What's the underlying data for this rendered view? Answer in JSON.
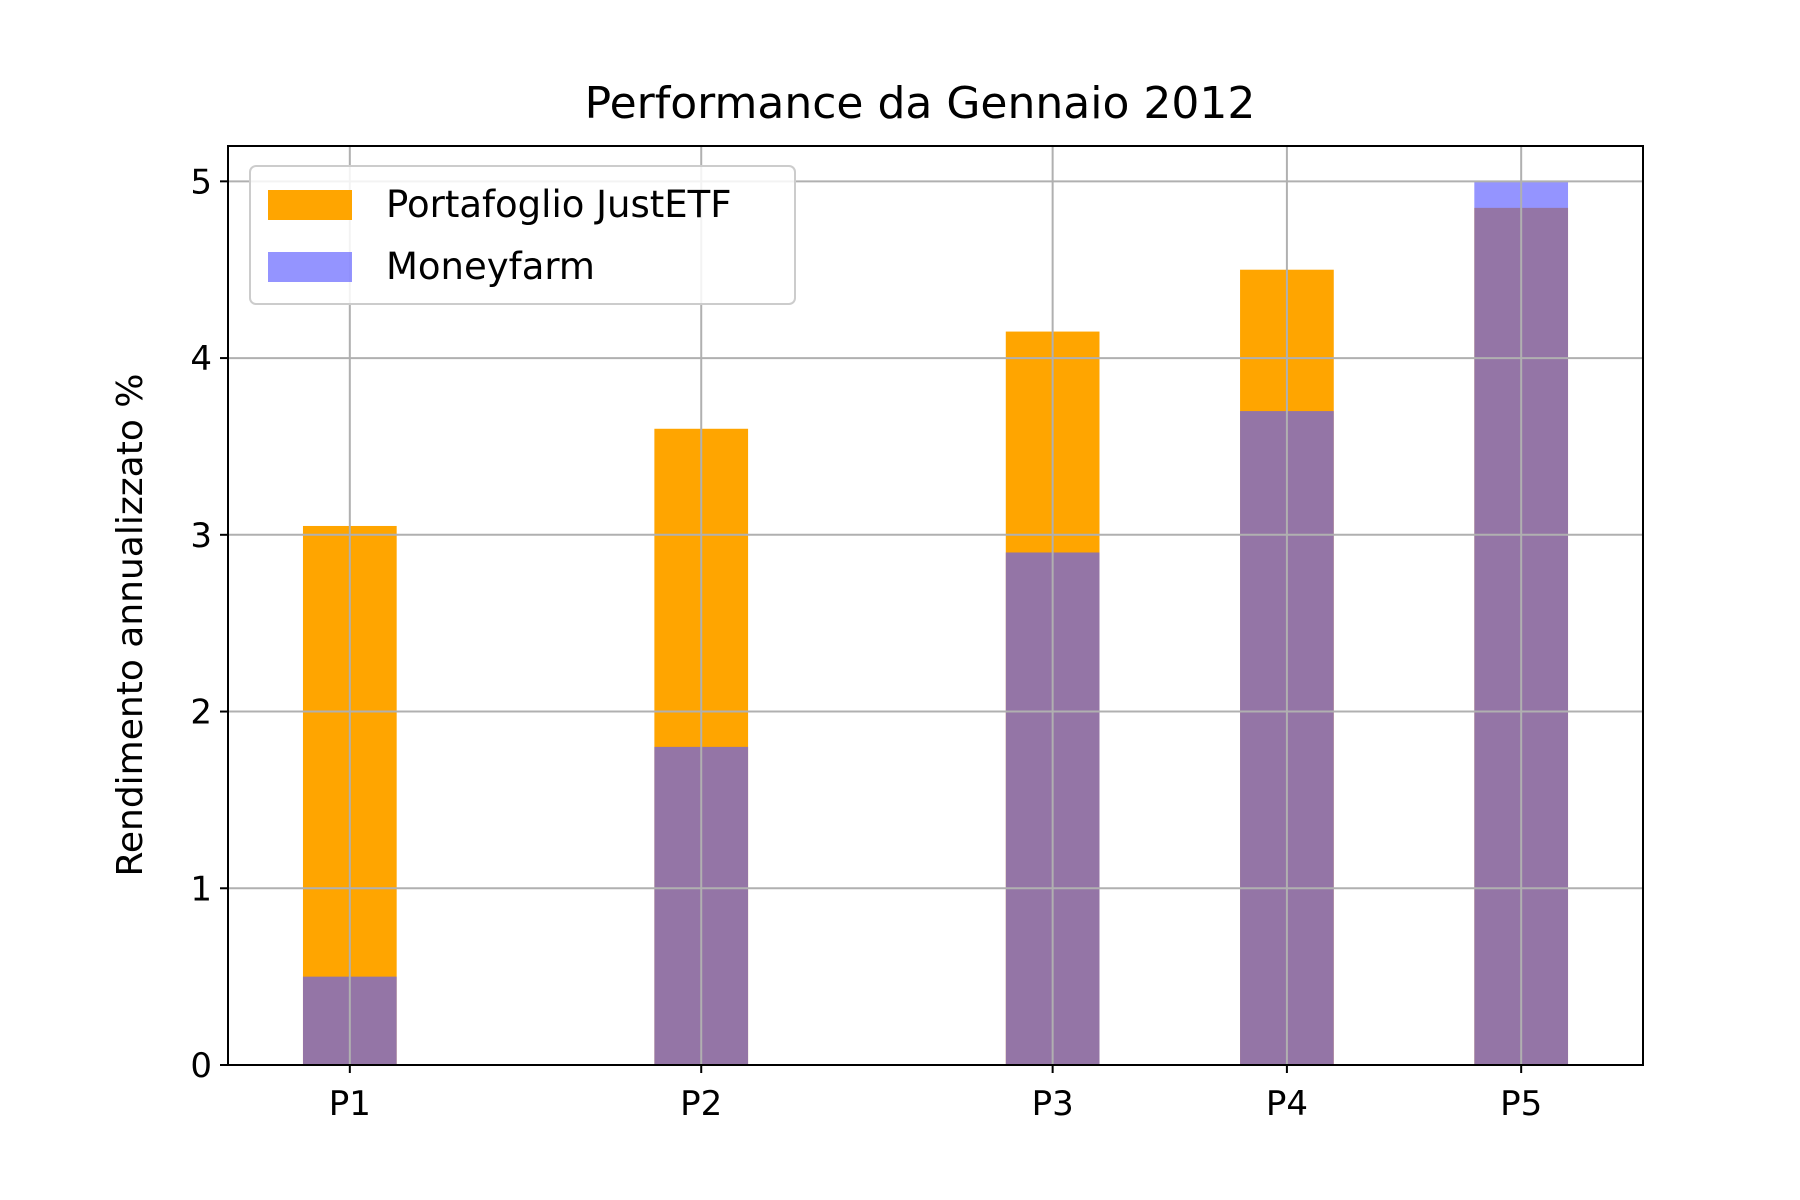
{
  "chart_data": {
    "type": "bar",
    "title": "Performance da Gennaio 2012",
    "xlabel": "",
    "ylabel": "Rendimento annualizzato %",
    "categories": [
      "P1",
      "P2",
      "P3",
      "P4",
      "P5"
    ],
    "x_positions": [
      1,
      2.5,
      4,
      5,
      6
    ],
    "ylim": [
      0,
      5.2
    ],
    "yticks": [
      0,
      1,
      2,
      3,
      4,
      5
    ],
    "series": [
      {
        "name": "Portafoglio JustETF",
        "color": "#FFA500",
        "values": [
          3.05,
          3.6,
          4.15,
          4.5,
          4.85
        ]
      },
      {
        "name": "Moneyfarm",
        "color": "#5A5AFF",
        "values": [
          0.5,
          1.8,
          2.9,
          3.7,
          5.0
        ],
        "alpha": 0.65
      }
    ],
    "grid": true,
    "legend_position": "top-left"
  }
}
